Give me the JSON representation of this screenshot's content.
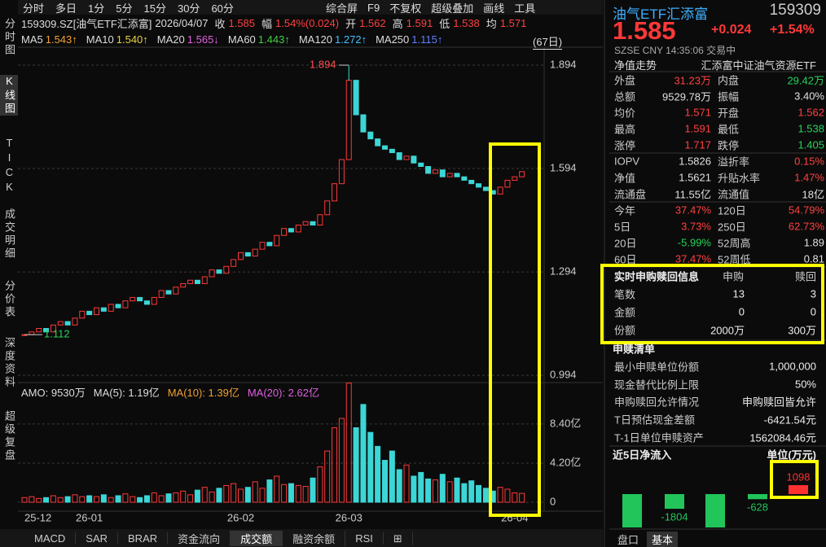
{
  "toolbar": {
    "periods": [
      "分时",
      "多日",
      "1分",
      "5分",
      "15分",
      "30分",
      "60分"
    ],
    "tools": [
      "综合屏",
      "F9",
      "不复权",
      "超级叠加",
      "画线",
      "工具"
    ]
  },
  "side_tabs": [
    "分时图",
    "K线图",
    "TICK",
    "成交明细",
    "分价表",
    "深度资料",
    "超级复盘"
  ],
  "quote_bar": [
    {
      "text": "159309.SZ[油气ETF汇添富]",
      "color": "#dddddd"
    },
    {
      "text": "2026/04/07",
      "color": "#dddddd"
    },
    {
      "text": "收",
      "color": "#dddddd"
    },
    {
      "text": "1.585",
      "color": "#ff4040"
    },
    {
      "text": "幅",
      "color": "#dddddd"
    },
    {
      "text": "1.54%(0.024)",
      "color": "#ff4040"
    },
    {
      "text": "开",
      "color": "#dddddd"
    },
    {
      "text": "1.562",
      "color": "#ff4040"
    },
    {
      "text": "高",
      "color": "#dddddd"
    },
    {
      "text": "1.591",
      "color": "#ff4040"
    },
    {
      "text": "低",
      "color": "#dddddd"
    },
    {
      "text": "1.538",
      "color": "#ff4040"
    },
    {
      "text": "均",
      "color": "#dddddd"
    },
    {
      "text": "1.571",
      "color": "#ff4040"
    }
  ],
  "ma_bar": [
    {
      "text": "MA5",
      "color": "#dddddd"
    },
    {
      "text": "1.543↑",
      "color": "#f0a030"
    },
    {
      "text": "MA10",
      "color": "#dddddd"
    },
    {
      "text": "1.540↑",
      "color": "#e8d040"
    },
    {
      "text": "MA20",
      "color": "#dddddd"
    },
    {
      "text": "1.565↓",
      "color": "#e060e0"
    },
    {
      "text": "MA60",
      "color": "#dddddd"
    },
    {
      "text": "1.443↑",
      "color": "#40d040"
    },
    {
      "text": "MA120",
      "color": "#dddddd"
    },
    {
      "text": "1.272↑",
      "color": "#40c0ff"
    },
    {
      "text": "MA250",
      "color": "#dddddd"
    },
    {
      "text": "1.115↑",
      "color": "#6080ff"
    }
  ],
  "range_label": "(67日)",
  "chart_data": {
    "type": "candlestick",
    "closes": [
      1.112,
      1.12,
      1.13,
      1.12,
      1.14,
      1.15,
      1.14,
      1.16,
      1.18,
      1.17,
      1.19,
      1.18,
      1.2,
      1.19,
      1.21,
      1.22,
      1.21,
      1.2,
      1.22,
      1.24,
      1.23,
      1.25,
      1.26,
      1.27,
      1.26,
      1.28,
      1.3,
      1.29,
      1.31,
      1.33,
      1.35,
      1.34,
      1.36,
      1.38,
      1.37,
      1.4,
      1.42,
      1.41,
      1.43,
      1.44,
      1.43,
      1.46,
      1.5,
      1.55,
      1.62,
      1.85,
      1.75,
      1.7,
      1.68,
      1.66,
      1.65,
      1.64,
      1.62,
      1.63,
      1.61,
      1.6,
      1.58,
      1.59,
      1.57,
      1.58,
      1.57,
      1.56,
      1.55,
      1.54,
      1.53,
      1.52,
      1.54,
      1.56,
      1.57,
      1.585
    ],
    "ylim": [
      0.973,
      1.946
    ],
    "yticks": [
      1.894,
      1.594,
      1.294,
      0.994
    ],
    "peak": 1.894,
    "trough": 1.112,
    "up_color": "#ff3838",
    "down_color": "#3cd6d6",
    "dates": [
      "25-12",
      "26-01",
      "26-02",
      "26-03",
      "26-04"
    ]
  },
  "volume": {
    "legend": [
      {
        "text": "AMO: 9530万",
        "color": "#dddddd"
      },
      {
        "text": "MA(5): 1.19亿",
        "color": "#dddddd"
      },
      {
        "text": "MA(10): 1.39亿",
        "color": "#f0a030"
      },
      {
        "text": "MA(20): 2.62亿",
        "color": "#e060e0"
      }
    ],
    "values": [
      0.5,
      0.6,
      0.4,
      0.5,
      0.7,
      0.5,
      0.6,
      0.8,
      0.6,
      0.7,
      0.6,
      0.8,
      0.5,
      0.7,
      0.9,
      0.6,
      0.5,
      0.7,
      1.0,
      0.7,
      0.9,
      1.0,
      1.2,
      0.8,
      1.3,
      1.6,
      1.1,
      1.5,
      1.8,
      2.0,
      1.4,
      1.6,
      2.2,
      1.5,
      2.4,
      2.8,
      1.9,
      2.0,
      1.8,
      1.7,
      2.6,
      3.8,
      5.5,
      8.0,
      9.0,
      12.8,
      8.0,
      10.5,
      7.5,
      6.0,
      4.5,
      5.5,
      3.5,
      4.0,
      2.8,
      3.2,
      2.5,
      2.4,
      3.0,
      2.2,
      2.6,
      2.0,
      2.3,
      1.8,
      1.5,
      1.2,
      1.6,
      1.4,
      1.0,
      0.95
    ],
    "ylim": [
      0,
      13.2
    ],
    "yticks": [
      {
        "value": 8.4,
        "label": "8.40亿"
      },
      {
        "value": 4.2,
        "label": "4.20亿"
      },
      0
    ]
  },
  "bottom_tabs": [
    "MACD",
    "SAR",
    "BRAR",
    "资金流向",
    "成交额",
    "融资余额",
    "RSI",
    "⊞"
  ],
  "side": {
    "name": "油气ETF汇添富",
    "code": "159309",
    "price": "1.585",
    "change": "+0.024",
    "pct": "+1.54%",
    "status": "SZSE CNY 14:35:06 交易中",
    "nav_link": "净值走势",
    "full_name": "汇添富中证油气资源ETF",
    "stats": [
      {
        "cells": [
          "外盘",
          "31.23万",
          "内盘",
          "29.42万"
        ],
        "colors": [
          "red",
          "green"
        ]
      },
      {
        "cells": [
          "总额",
          "9529.78万",
          "振幅",
          "3.40%"
        ],
        "colors": [
          "white",
          "white"
        ]
      },
      {
        "cells": [
          "均价",
          "1.571",
          "开盘",
          "1.562"
        ],
        "colors": [
          "red",
          "red"
        ]
      },
      {
        "cells": [
          "最高",
          "1.591",
          "最低",
          "1.538"
        ],
        "colors": [
          "red",
          "green"
        ]
      },
      {
        "cells": [
          "涨停",
          "1.717",
          "跌停",
          "1.405"
        ],
        "colors": [
          "red",
          "green"
        ]
      },
      {
        "cells": [
          "IOPV",
          "1.5826",
          "溢折率",
          "0.15%"
        ],
        "colors": [
          "white",
          "red"
        ]
      },
      {
        "cells": [
          "净值",
          "1.5621",
          "升贴水率",
          "1.47%"
        ],
        "colors": [
          "white",
          "red"
        ]
      },
      {
        "cells": [
          "流通盘",
          "11.55亿",
          "流通值",
          "18亿"
        ],
        "colors": [
          "white",
          "white"
        ]
      },
      {
        "cells": [
          "今年",
          "37.47%",
          "120日",
          "54.79%"
        ],
        "colors": [
          "red",
          "red"
        ]
      },
      {
        "cells": [
          "5日",
          "3.73%",
          "250日",
          "62.73%"
        ],
        "colors": [
          "red",
          "red"
        ]
      },
      {
        "cells": [
          "20日",
          "-5.99%",
          "52周高",
          "1.89"
        ],
        "colors": [
          "green",
          "white"
        ]
      },
      {
        "cells": [
          "60日",
          "37.47%",
          "52周低",
          "0.81"
        ],
        "colors": [
          "red",
          "white"
        ]
      }
    ],
    "subscription": {
      "header": [
        "实时申购赎回信息",
        "申购",
        "赎回"
      ],
      "rows": [
        [
          "笔数",
          "13",
          "3"
        ],
        [
          "金额",
          "0",
          "0"
        ],
        [
          "份额",
          "2000万",
          "300万"
        ]
      ]
    },
    "list": {
      "title": "申赎清单",
      "rows": [
        [
          "最小申赎单位份额",
          "1,000,000"
        ],
        [
          "现金替代比例上限",
          "50%"
        ],
        [
          "申购赎回允许情况",
          "申购赎回皆允许"
        ],
        [
          "T日预估现金差额",
          "-6421.54元"
        ],
        [
          "T-1日单位申赎资产",
          "1562084.46元"
        ]
      ]
    },
    "netflow": {
      "type": "bar",
      "title": "近5日净流入",
      "unit": "单位(万元)",
      "values": [
        -4100,
        -1804,
        -4100,
        -628,
        1098
      ],
      "value_labels": [
        null,
        "-1804",
        null,
        "-628",
        "1098"
      ],
      "up_color": "#ff3030",
      "down_color": "#22c55a"
    },
    "tabs": [
      "盘口",
      "基本"
    ]
  }
}
